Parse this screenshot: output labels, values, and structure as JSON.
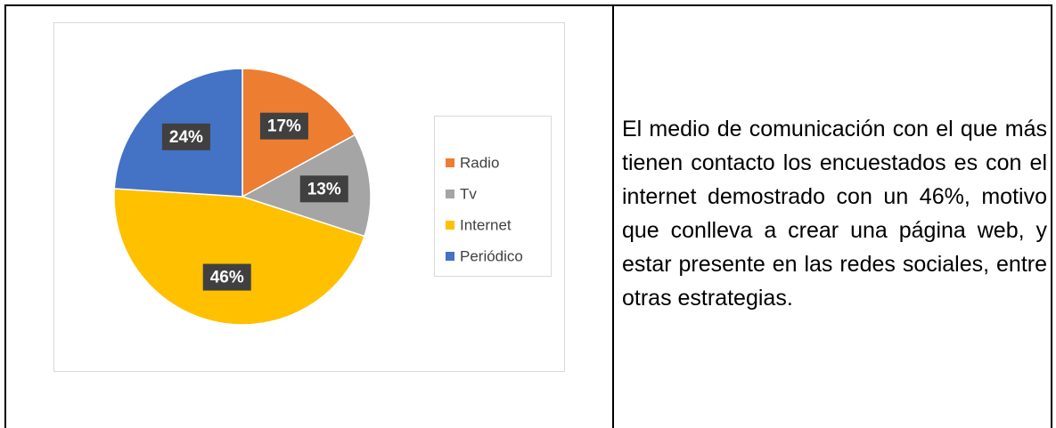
{
  "chart_data": {
    "type": "pie",
    "categories": [
      "Radio",
      "Tv",
      "Internet",
      "Periódico"
    ],
    "values": [
      17,
      13,
      46,
      24
    ],
    "value_labels": [
      "17%",
      "13%",
      "46%",
      "24%"
    ],
    "colors": [
      "#ed7d31",
      "#a5a5a5",
      "#ffc000",
      "#4472c4"
    ],
    "legend": "right"
  },
  "paragraph": "El medio de comunicación con el que más tienen contacto los encuestados es con el internet demostrado con un 46%, motivo que conlleva a crear una página web, y estar presente en las redes sociales, entre otras estrategias."
}
